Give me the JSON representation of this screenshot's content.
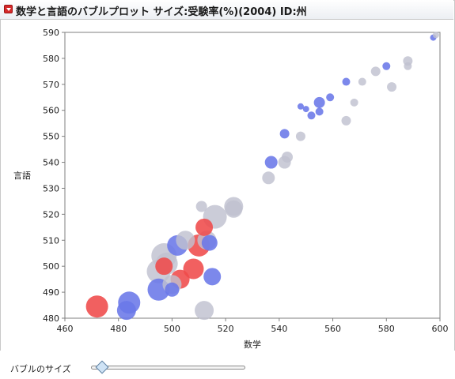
{
  "header": {
    "title": "数学と言語のバブルプロット サイズ:受験率(%)(2004)  ID:州",
    "disclosure_icon": "red-triangle-menu-icon"
  },
  "controls": {
    "bubble_size_label": "バブルのサイズ",
    "bubble_size_value": 0.07
  },
  "colors": {
    "low": "#6a78e8",
    "mid": "#bfc1cf",
    "high": "#ef4a4a"
  },
  "chart_data": {
    "type": "scatter",
    "subtype": "bubble",
    "title": "",
    "xlabel": "数学",
    "ylabel": "言語",
    "xlim": [
      460,
      600
    ],
    "ylim": [
      480,
      590
    ],
    "xticks": [
      460,
      480,
      500,
      520,
      540,
      560,
      580,
      600
    ],
    "yticks": [
      480,
      490,
      500,
      510,
      520,
      530,
      540,
      550,
      560,
      570,
      580,
      590
    ],
    "grid": false,
    "legend": "none",
    "points": [
      {
        "x": 597.5,
        "y": 588,
        "size": 4,
        "color": "low"
      },
      {
        "x": 598.5,
        "y": 589,
        "size": 4,
        "color": "mid"
      },
      {
        "x": 588,
        "y": 579,
        "size": 6,
        "color": "mid"
      },
      {
        "x": 588,
        "y": 577,
        "size": 5,
        "color": "mid"
      },
      {
        "x": 580,
        "y": 577,
        "size": 5,
        "color": "low"
      },
      {
        "x": 576,
        "y": 575,
        "size": 6,
        "color": "mid"
      },
      {
        "x": 582,
        "y": 569,
        "size": 6,
        "color": "mid"
      },
      {
        "x": 571,
        "y": 571,
        "size": 5,
        "color": "mid"
      },
      {
        "x": 565,
        "y": 571,
        "size": 5,
        "color": "low"
      },
      {
        "x": 568,
        "y": 563,
        "size": 5,
        "color": "mid"
      },
      {
        "x": 565,
        "y": 556,
        "size": 6,
        "color": "mid"
      },
      {
        "x": 559,
        "y": 565,
        "size": 5,
        "color": "low"
      },
      {
        "x": 555,
        "y": 563,
        "size": 7,
        "color": "low"
      },
      {
        "x": 548,
        "y": 561.5,
        "size": 4,
        "color": "low"
      },
      {
        "x": 550,
        "y": 560.5,
        "size": 4,
        "color": "low"
      },
      {
        "x": 555,
        "y": 559.5,
        "size": 5,
        "color": "low"
      },
      {
        "x": 552,
        "y": 558,
        "size": 5,
        "color": "low"
      },
      {
        "x": 542,
        "y": 551,
        "size": 6,
        "color": "low"
      },
      {
        "x": 548,
        "y": 550,
        "size": 6,
        "color": "mid"
      },
      {
        "x": 543,
        "y": 542,
        "size": 7,
        "color": "mid"
      },
      {
        "x": 542,
        "y": 540,
        "size": 8,
        "color": "mid"
      },
      {
        "x": 537,
        "y": 540,
        "size": 8,
        "color": "low"
      },
      {
        "x": 536,
        "y": 534,
        "size": 8,
        "color": "mid"
      },
      {
        "x": 511,
        "y": 523,
        "size": 7,
        "color": "mid"
      },
      {
        "x": 523,
        "y": 523,
        "size": 12,
        "color": "mid"
      },
      {
        "x": 523,
        "y": 522,
        "size": 11,
        "color": "mid"
      },
      {
        "x": 516,
        "y": 519,
        "size": 15,
        "color": "mid"
      },
      {
        "x": 512,
        "y": 515,
        "size": 11,
        "color": "high"
      },
      {
        "x": 513,
        "y": 510,
        "size": 12,
        "color": "mid"
      },
      {
        "x": 514,
        "y": 509,
        "size": 10,
        "color": "low"
      },
      {
        "x": 510,
        "y": 508,
        "size": 14,
        "color": "high"
      },
      {
        "x": 505,
        "y": 510,
        "size": 12,
        "color": "mid"
      },
      {
        "x": 502,
        "y": 508,
        "size": 13,
        "color": "low"
      },
      {
        "x": 497,
        "y": 504,
        "size": 16,
        "color": "mid"
      },
      {
        "x": 498,
        "y": 501,
        "size": 14,
        "color": "mid"
      },
      {
        "x": 497,
        "y": 500,
        "size": 11,
        "color": "high"
      },
      {
        "x": 508,
        "y": 499,
        "size": 13,
        "color": "high"
      },
      {
        "x": 495,
        "y": 498,
        "size": 15,
        "color": "mid"
      },
      {
        "x": 503,
        "y": 495,
        "size": 12,
        "color": "high"
      },
      {
        "x": 515,
        "y": 496,
        "size": 11,
        "color": "low"
      },
      {
        "x": 500,
        "y": 493,
        "size": 12,
        "color": "mid"
      },
      {
        "x": 500,
        "y": 491,
        "size": 9,
        "color": "low"
      },
      {
        "x": 495,
        "y": 491,
        "size": 14,
        "color": "low"
      },
      {
        "x": 484,
        "y": 486,
        "size": 14,
        "color": "low"
      },
      {
        "x": 483,
        "y": 483,
        "size": 12,
        "color": "low"
      },
      {
        "x": 472,
        "y": 484.5,
        "size": 14,
        "color": "high"
      },
      {
        "x": 512,
        "y": 483,
        "size": 12,
        "color": "mid"
      }
    ]
  }
}
